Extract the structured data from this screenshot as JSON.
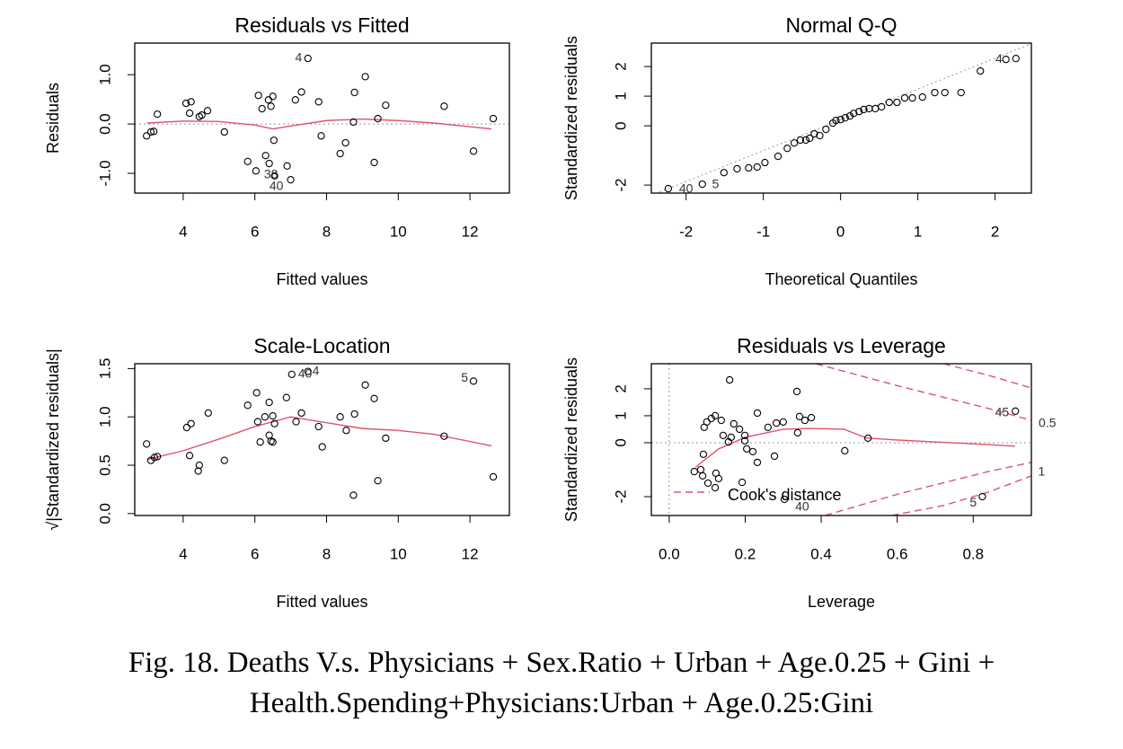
{
  "chart_data": [
    {
      "type": "scatter",
      "title": "Residuals vs Fitted",
      "xlabel": "Fitted values",
      "ylabel": "Residuals",
      "xlim": [
        2.65,
        13.1
      ],
      "ylim": [
        -1.4,
        1.64
      ],
      "xticks": [
        4,
        6,
        8,
        10,
        12
      ],
      "yticks": [
        {
          "value": -1,
          "label": "-1.0"
        },
        {
          "value": 0,
          "label": "0.0"
        },
        {
          "value": 1,
          "label": "1.0"
        }
      ],
      "x": [
        2.98,
        3.1,
        3.18,
        3.28,
        4.08,
        4.22,
        4.18,
        4.45,
        4.52,
        4.68,
        5.15,
        5.8,
        6.03,
        6.1,
        6.2,
        6.3,
        6.38,
        6.4,
        6.45,
        6.5,
        6.53,
        6.55,
        6.9,
        7.0,
        7.13,
        7.3,
        7.48,
        7.78,
        7.85,
        8.38,
        8.53,
        8.75,
        8.78,
        9.08,
        9.33,
        9.43,
        9.65,
        11.28,
        12.1,
        12.65
      ],
      "values": [
        -0.24,
        -0.16,
        -0.15,
        0.2,
        0.42,
        0.45,
        0.22,
        0.15,
        0.18,
        0.27,
        -0.16,
        -0.76,
        -0.95,
        0.58,
        0.31,
        -0.64,
        0.49,
        -0.8,
        0.36,
        0.56,
        -0.33,
        -1.05,
        -0.85,
        -1.13,
        0.49,
        0.65,
        1.33,
        0.45,
        -0.24,
        -0.6,
        -0.38,
        0.04,
        0.64,
        0.96,
        -0.78,
        0.11,
        0.38,
        0.36,
        -0.55,
        0.11
      ],
      "color": "#000000",
      "smooth": {
        "color": "#df536b",
        "x": [
          3,
          4,
          5,
          6,
          6.5,
          7,
          8,
          9,
          10,
          11,
          12.6
        ],
        "values": [
          0.02,
          0.06,
          0.05,
          -0.02,
          -0.1,
          -0.04,
          0.07,
          0.1,
          0.07,
          0.02,
          -0.1
        ]
      },
      "hline": 0,
      "annotations": [
        {
          "text": "4",
          "x": 7.22,
          "y": 1.33
        },
        {
          "text": "38",
          "x": 6.45,
          "y": -1.03
        },
        {
          "text": "40",
          "x": 6.6,
          "y": -1.27
        }
      ]
    },
    {
      "type": "scatter",
      "title": "Normal Q-Q",
      "xlabel": "Theoretical Quantiles",
      "ylabel": "Standardized residuals",
      "xlim": [
        -2.45,
        2.47
      ],
      "ylim": [
        -2.27,
        2.79
      ],
      "xticks": [
        -2,
        -1,
        0,
        1,
        2
      ],
      "yticks": [
        -2,
        0,
        1,
        2
      ],
      "x": [
        -2.23,
        -1.79,
        -1.51,
        -1.34,
        -1.19,
        -1.08,
        -0.98,
        -0.81,
        -0.69,
        -0.6,
        -0.52,
        -0.45,
        -0.4,
        -0.34,
        -0.27,
        -0.19,
        -0.1,
        -0.06,
        0,
        0.06,
        0.12,
        0.17,
        0.24,
        0.3,
        0.37,
        0.45,
        0.53,
        0.63,
        0.73,
        0.83,
        0.93,
        1.06,
        1.22,
        1.35,
        1.56,
        1.81,
        2.14,
        2.27
      ],
      "values": [
        -2.12,
        -1.97,
        -1.58,
        -1.45,
        -1.42,
        -1.39,
        -1.24,
        -1.03,
        -0.76,
        -0.58,
        -0.48,
        -0.48,
        -0.42,
        -0.27,
        -0.33,
        -0.12,
        0.09,
        0.18,
        0.21,
        0.27,
        0.33,
        0.42,
        0.48,
        0.55,
        0.58,
        0.58,
        0.64,
        0.79,
        0.79,
        0.94,
        0.94,
        0.97,
        1.12,
        1.12,
        1.12,
        1.85,
        2.24,
        2.27
      ],
      "color": "#000000",
      "refline": {
        "slope": 1.04,
        "intercept": 0.2
      },
      "annotations": [
        {
          "text": "4",
          "x": 2.05,
          "y": 2.24
        },
        {
          "text": "5",
          "x": -1.62,
          "y": -1.99
        },
        {
          "text": "40",
          "x": -2.0,
          "y": -2.15
        }
      ]
    },
    {
      "type": "scatter",
      "title": "Scale-Location",
      "xlabel": "Fitted values",
      "ylabel": "√|Standardized residuals|",
      "xlim": [
        2.65,
        13.1
      ],
      "ylim": [
        -0.02,
        1.55
      ],
      "xticks": [
        4,
        6,
        8,
        10,
        12
      ],
      "yticks": [
        {
          "value": 0,
          "label": "0.0"
        },
        {
          "value": 0.5,
          "label": "0.5"
        },
        {
          "value": 1,
          "label": "1.0"
        },
        {
          "value": 1.5,
          "label": "1.5"
        }
      ],
      "x": [
        2.98,
        3.1,
        3.2,
        3.28,
        4.1,
        4.22,
        4.18,
        4.45,
        4.42,
        4.7,
        5.15,
        5.8,
        6.05,
        6.08,
        6.15,
        6.28,
        6.4,
        6.4,
        6.45,
        6.5,
        6.55,
        6.5,
        6.88,
        7.03,
        7.15,
        7.3,
        7.48,
        7.78,
        7.88,
        8.38,
        8.55,
        8.78,
        8.75,
        9.08,
        9.33,
        9.43,
        9.65,
        11.28,
        12.1,
        12.65
      ],
      "values": [
        0.72,
        0.55,
        0.58,
        0.59,
        0.89,
        0.93,
        0.6,
        0.5,
        0.44,
        1.04,
        0.55,
        1.12,
        1.25,
        0.95,
        0.74,
        1.0,
        0.81,
        1.15,
        0.75,
        0.74,
        0.93,
        1.01,
        1.2,
        1.44,
        0.95,
        1.04,
        1.47,
        0.9,
        0.69,
        1.0,
        0.86,
        1.03,
        0.19,
        1.33,
        1.19,
        0.34,
        0.78,
        0.8,
        1.37,
        0.38
      ],
      "color": "#000000",
      "smooth": {
        "color": "#df536b",
        "x": [
          3,
          4,
          5,
          6,
          7,
          8,
          9,
          10,
          11,
          12.6
        ],
        "values": [
          0.56,
          0.65,
          0.77,
          0.9,
          1.0,
          0.94,
          0.88,
          0.86,
          0.82,
          0.7
        ]
      },
      "annotations": [
        {
          "text": "40",
          "x": 7.4,
          "y": 1.44
        },
        {
          "text": "4",
          "x": 7.7,
          "y": 1.47
        },
        {
          "text": "5",
          "x": 11.85,
          "y": 1.4
        }
      ]
    },
    {
      "type": "scatter",
      "title": "Residuals vs Leverage",
      "xlabel": "Leverage",
      "ylabel": "Standardized residuals",
      "xlim": [
        -0.047,
        0.953
      ],
      "ylim": [
        -2.7,
        2.93
      ],
      "xticks": [
        {
          "value": 0,
          "label": "0.0"
        },
        {
          "value": 0.2,
          "label": "0.2"
        },
        {
          "value": 0.4,
          "label": "0.4"
        },
        {
          "value": 0.6,
          "label": "0.6"
        },
        {
          "value": 0.8,
          "label": "0.8"
        }
      ],
      "yticks": [
        -2,
        0,
        1,
        2
      ],
      "x": [
        0.066,
        0.083,
        0.088,
        0.102,
        0.121,
        0.13,
        0.123,
        0.09,
        0.092,
        0.099,
        0.111,
        0.121,
        0.137,
        0.142,
        0.156,
        0.163,
        0.159,
        0.17,
        0.185,
        0.199,
        0.199,
        0.192,
        0.204,
        0.22,
        0.232,
        0.232,
        0.26,
        0.277,
        0.282,
        0.3,
        0.303,
        0.336,
        0.338,
        0.343,
        0.357,
        0.374,
        0.462,
        0.523,
        0.824,
        0.911
      ],
      "values": [
        -1.07,
        -1.0,
        -1.23,
        -1.5,
        -1.67,
        -1.33,
        -1.13,
        -0.43,
        0.57,
        0.77,
        0.9,
        1.0,
        0.83,
        0.27,
        0.03,
        0.2,
        2.33,
        0.7,
        0.5,
        0.27,
        0.07,
        -1.47,
        -0.23,
        -0.33,
        -0.73,
        1.1,
        0.57,
        -0.5,
        0.73,
        0.77,
        -2.1,
        1.9,
        0.37,
        0.97,
        0.83,
        0.93,
        -0.3,
        0.17,
        -2.0,
        1.17
      ],
      "color": "#000000",
      "smooth": {
        "color": "#df536b",
        "x": [
          0.07,
          0.13,
          0.2,
          0.3,
          0.37,
          0.46,
          0.52,
          0.6,
          0.84,
          0.91
        ],
        "values": [
          -0.9,
          -0.23,
          0.2,
          0.5,
          0.53,
          0.5,
          0.17,
          0.1,
          -0.07,
          -0.13
        ]
      },
      "hline": 0,
      "vline": 0,
      "contour_color": "#df536b",
      "contours": [
        {
          "x": [
            0.386,
            0.604,
            0.84,
            0.953
          ],
          "values": [
            2.93,
            2.1,
            1.27,
            0.83
          ]
        },
        {
          "x": [
            0.41,
            0.604,
            0.84,
            0.953
          ],
          "values": [
            -2.7,
            -1.9,
            -1.07,
            -0.73
          ]
        },
        {
          "x": [
            0.722,
            0.84,
            0.953
          ],
          "values": [
            2.93,
            2.5,
            2.03
          ]
        },
        {
          "x": [
            0.585,
            0.722,
            0.84,
            0.953
          ],
          "values": [
            -2.7,
            -2.33,
            -1.83,
            -1.23
          ]
        }
      ],
      "legend_label": "Cook's distance",
      "annotations": [
        {
          "text": "45",
          "x": 0.876,
          "y": 1.1
        },
        {
          "text": "40",
          "x": 0.35,
          "y": -2.4
        },
        {
          "text": "5",
          "x": 0.8,
          "y": -2.25
        },
        {
          "text": "0.5",
          "x": 0.995,
          "y": 0.7
        },
        {
          "text": "1",
          "x": 0.98,
          "y": -1.1
        }
      ]
    }
  ],
  "caption": [
    "Fig. 18. Deaths V.s. Physicians + Sex.Ratio + Urban + Age.0.25 + Gini +",
    "Health.Spending+Physicians:Urban + Age.0.25:Gini"
  ]
}
